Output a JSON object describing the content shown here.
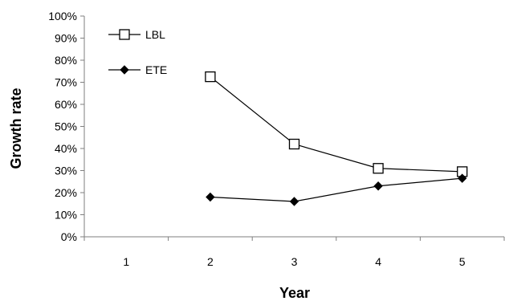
{
  "chart_data": {
    "type": "line",
    "title": "",
    "xlabel": "Year",
    "ylabel": "Growth rate",
    "categories": [
      "1",
      "2",
      "3",
      "4",
      "5"
    ],
    "ylim": [
      0,
      1
    ],
    "y_ticks": [
      "0%",
      "10%",
      "20%",
      "30%",
      "40%",
      "50%",
      "60%",
      "70%",
      "80%",
      "90%",
      "100%"
    ],
    "grid": false,
    "legend_position": "top-left",
    "series": [
      {
        "name": "LBL",
        "marker": "open-square",
        "color": "#000000",
        "values": [
          null,
          0.725,
          0.42,
          0.31,
          0.295
        ]
      },
      {
        "name": "ETE",
        "marker": "filled-diamond",
        "color": "#000000",
        "values": [
          null,
          0.18,
          0.16,
          0.23,
          0.265
        ]
      }
    ]
  }
}
